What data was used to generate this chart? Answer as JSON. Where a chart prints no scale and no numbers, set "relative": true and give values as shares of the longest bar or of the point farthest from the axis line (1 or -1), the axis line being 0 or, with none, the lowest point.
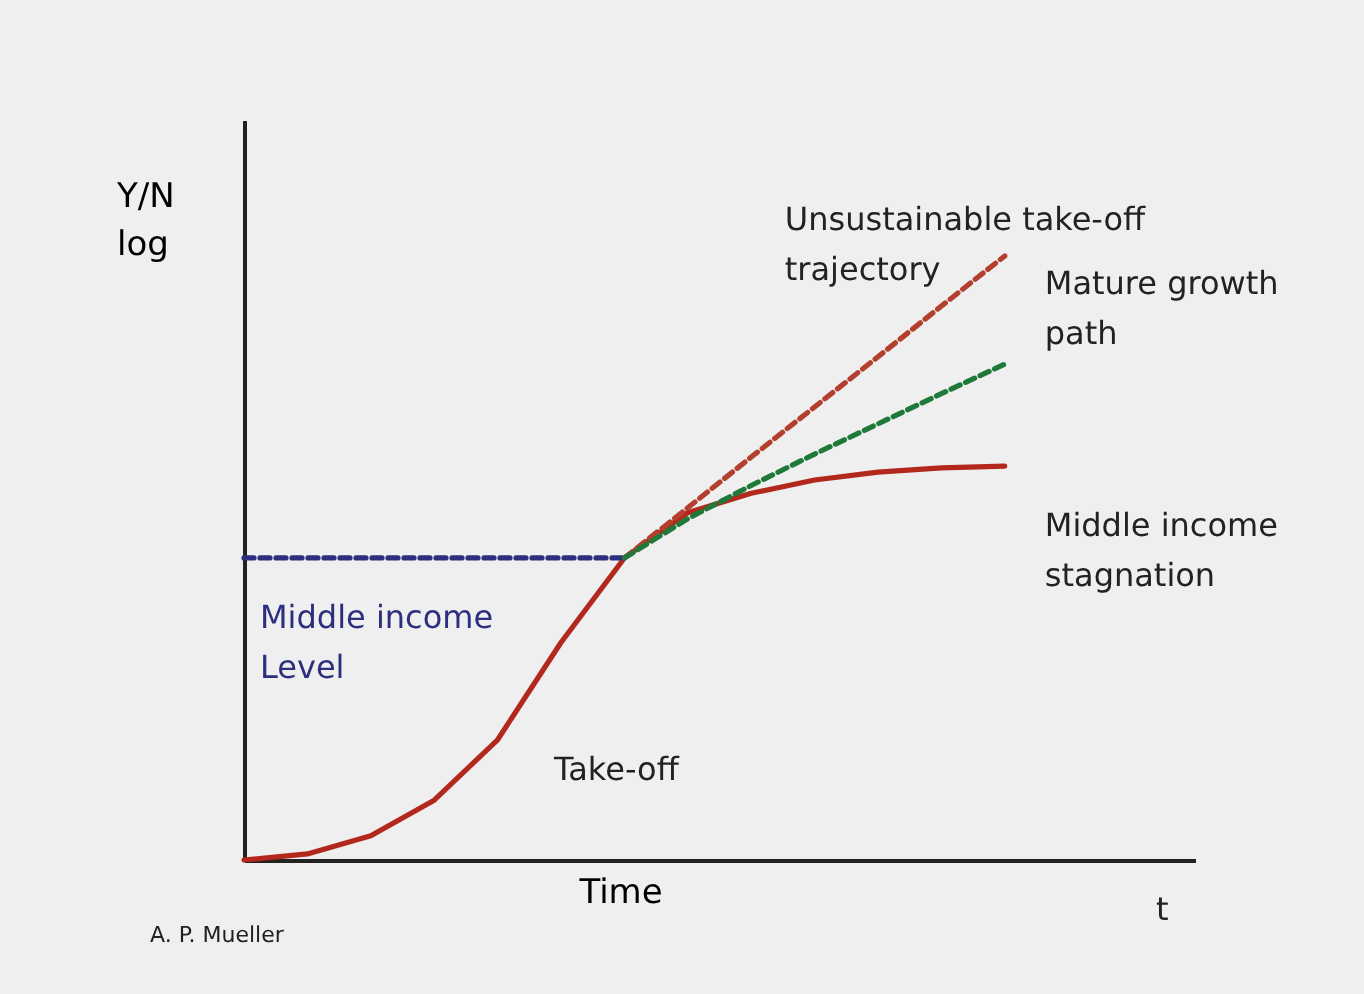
{
  "chart_data": {
    "type": "line",
    "relative": true,
    "xlabel": "Time",
    "ylabel": "Y/N\nlog",
    "tick_labels": false,
    "categories": [
      null,
      null,
      null,
      null,
      null,
      null,
      null,
      null,
      null,
      null,
      null,
      null,
      null,
      null,
      null,
      null
    ],
    "series": [
      {
        "name": "Middle income\nstagnation",
        "color": "#b3281c",
        "line_style": "solid",
        "values": [
          0,
          0.01,
          0.04,
          0.099,
          0.199,
          0.36,
          0.5,
          0.575,
          0.607,
          0.629,
          0.642,
          0.649,
          0.652,
          null,
          null,
          null
        ]
      },
      {
        "name": "Middle income\nLevel",
        "color": "#2b2f7e",
        "line_style": "dashed",
        "values": [
          0.5,
          0.5,
          0.5,
          0.5,
          0.5,
          0.5,
          0.5,
          null,
          null,
          null,
          null,
          null,
          null,
          null,
          null,
          null
        ]
      },
      {
        "name": "Unsustainable take-off\ntrajectory",
        "color": "#b3402e",
        "line_style": "dashed",
        "values": [
          null,
          null,
          null,
          null,
          null,
          null,
          0.5,
          0.583,
          0.667,
          0.75,
          0.833,
          0.917,
          1.0,
          null,
          null,
          null
        ]
      },
      {
        "name": "Mature growth\npath",
        "color": "#1f7a3a",
        "line_style": "dashed",
        "values": [
          null,
          null,
          null,
          null,
          null,
          null,
          0.5,
          0.565,
          0.62,
          0.672,
          0.722,
          0.772,
          0.821,
          null,
          null,
          null
        ]
      }
    ],
    "annotations": [
      "Take-off",
      "t",
      "A. P. Mueller"
    ]
  }
}
